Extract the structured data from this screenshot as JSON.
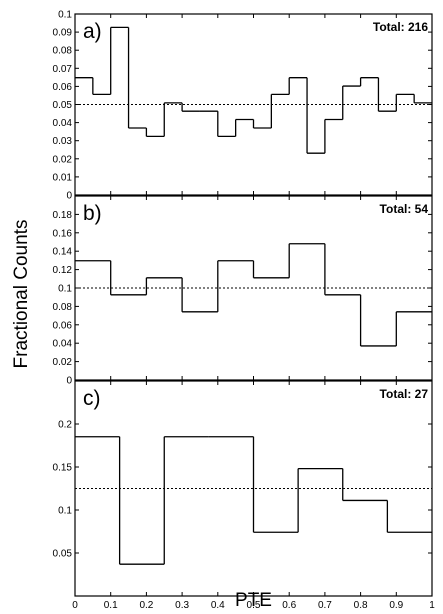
{
  "chart_data": {
    "type": "step",
    "xlabel": "PTE",
    "ylabel": "Fractional Counts",
    "xlim": [
      0,
      1
    ],
    "x_ticks": [
      "0",
      "0.1",
      "0.2",
      "0.3",
      "0.4",
      "0.5",
      "0.6",
      "0.7",
      "0.8",
      "0.9",
      "1"
    ],
    "panels": [
      {
        "label": "a)",
        "total_label": "Total: 216",
        "ylim": [
          0,
          0.1
        ],
        "y_ticks": [
          "0",
          "0.01",
          "0.02",
          "0.03",
          "0.04",
          "0.05",
          "0.06",
          "0.07",
          "0.08",
          "0.09",
          "0.1"
        ],
        "reference": 0.05,
        "bin_edges": [
          0,
          0.05,
          0.1,
          0.15,
          0.2,
          0.25,
          0.3,
          0.35,
          0.4,
          0.45,
          0.5,
          0.55,
          0.6,
          0.65,
          0.7,
          0.75,
          0.8,
          0.85,
          0.9,
          0.95,
          1.0
        ],
        "values": [
          0.0648,
          0.0556,
          0.0926,
          0.037,
          0.0324,
          0.0509,
          0.0463,
          0.0463,
          0.0324,
          0.0417,
          0.037,
          0.0556,
          0.0648,
          0.0231,
          0.0417,
          0.0602,
          0.0648,
          0.0463,
          0.0556,
          0.0509
        ]
      },
      {
        "label": "b)",
        "total_label": "Total: 54",
        "ylim": [
          0,
          0.2
        ],
        "y_ticks": [
          "0",
          "0.02",
          "0.04",
          "0.06",
          "0.08",
          "0.1",
          "0.12",
          "0.14",
          "0.16",
          "0.18"
        ],
        "reference": 0.1,
        "bin_edges": [
          0,
          0.1,
          0.2,
          0.3,
          0.4,
          0.5,
          0.6,
          0.7,
          0.8,
          0.9,
          1.0
        ],
        "values": [
          0.1296,
          0.0926,
          0.1111,
          0.0741,
          0.1296,
          0.1111,
          0.1481,
          0.0926,
          0.037,
          0.0741
        ]
      },
      {
        "label": "c)",
        "total_label": "Total: 27",
        "ylim": [
          0,
          0.25
        ],
        "y_ticks": [
          "0.05",
          "0.1",
          "0.15",
          "0.2"
        ],
        "reference": 0.125,
        "bin_edges": [
          0,
          0.125,
          0.25,
          0.375,
          0.5,
          0.625,
          0.75,
          0.875,
          1.0
        ],
        "values": [
          0.1852,
          0.037,
          0.1852,
          0.1852,
          0.0741,
          0.1481,
          0.1111,
          0.0741
        ]
      }
    ]
  }
}
